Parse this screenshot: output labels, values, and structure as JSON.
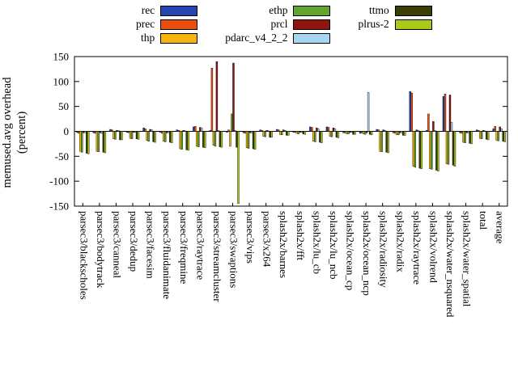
{
  "figure": {
    "ylabel_line1": "memused.avg overhead",
    "ylabel_line2": "(percent)"
  },
  "chart_data": {
    "type": "bar",
    "title": "",
    "xlabel": "",
    "ylabel": "memused.avg overhead (percent)",
    "ylim": [
      -150,
      150
    ],
    "yticks": [
      -150,
      -100,
      -50,
      0,
      50,
      100,
      150
    ],
    "legend_position": "top, 3 columns, column-major",
    "grid": false,
    "categories": [
      "parsec3/blackscholes",
      "parsec3/bodytrack",
      "parsec3/canneal",
      "parsec3/dedup",
      "parsec3/facesim",
      "parsec3/fluidanimate",
      "parsec3/freqmine",
      "parsec3/raytrace",
      "parsec3/streamcluster",
      "parsec3/swaptions",
      "parsec3/vips",
      "parsec3/x264",
      "splash2x/barnes",
      "splash2x/fft",
      "splash2x/lu_cb",
      "splash2x/lu_ncb",
      "splash2x/ocean_cp",
      "splash2x/ocean_ncp",
      "splash2x/radiosity",
      "splash2x/radix",
      "splash2x/raytrace",
      "splash2x/volrend",
      "splash2x/water_nsquared",
      "splash2x/water_spatial",
      "total",
      "average"
    ],
    "series": [
      {
        "name": "rec",
        "color": "#2545b0",
        "values": [
          -2,
          -3,
          4,
          -2,
          7,
          -2,
          3,
          9,
          2,
          -2,
          -3,
          3,
          4,
          -2,
          9,
          9,
          -3,
          -4,
          4,
          -3,
          80,
          2,
          70,
          -3,
          3,
          5
        ]
      },
      {
        "name": "prec",
        "color": "#e84e0f",
        "values": [
          -4,
          -4,
          3,
          -3,
          5,
          -4,
          2,
          10,
          127,
          3,
          -4,
          2,
          3,
          -2,
          8,
          8,
          -3,
          -3,
          3,
          -4,
          77,
          35,
          75,
          -4,
          2,
          10
        ]
      },
      {
        "name": "thp",
        "color": "#f6b40e",
        "values": [
          -40,
          -40,
          -15,
          -14,
          -18,
          -20,
          -35,
          -30,
          -28,
          -30,
          -33,
          -10,
          -6,
          -4,
          -20,
          -10,
          -5,
          -5,
          -40,
          -7,
          -70,
          -75,
          -65,
          -22,
          -14,
          -18
        ]
      },
      {
        "name": "ethp",
        "color": "#61a52c",
        "values": [
          -42,
          -41,
          -16,
          -15,
          -20,
          -21,
          -36,
          -31,
          -30,
          35,
          -34,
          -11,
          -7,
          -5,
          -21,
          -11,
          -5,
          -6,
          -41,
          -7,
          -72,
          -76,
          -66,
          -23,
          -15,
          -19
        ]
      },
      {
        "name": "prcl",
        "color": "#8f1410",
        "values": [
          -3,
          -3,
          2,
          -2,
          4,
          -3,
          2,
          8,
          140,
          137,
          -3,
          2,
          3,
          -2,
          7,
          7,
          -2,
          -3,
          3,
          -3,
          3,
          20,
          73,
          -3,
          2,
          9
        ]
      },
      {
        "name": "pdarc_v4_2_2",
        "color": "#a6d6f2",
        "values": [
          -3,
          -4,
          2,
          -2,
          3,
          -3,
          1,
          6,
          2,
          2,
          -3,
          1,
          2,
          -2,
          5,
          5,
          -2,
          78,
          2,
          -3,
          2,
          2,
          18,
          -3,
          1,
          5
        ]
      },
      {
        "name": "ttmo",
        "color": "#3d3d08",
        "values": [
          -44,
          -42,
          -17,
          -15,
          -21,
          -22,
          -37,
          -32,
          -31,
          -32,
          -35,
          -12,
          -8,
          -5,
          -22,
          -12,
          -6,
          -6,
          -42,
          -8,
          -74,
          -78,
          -68,
          -24,
          -16,
          -20
        ]
      },
      {
        "name": "plrus-2",
        "color": "#a9c817",
        "values": [
          -45,
          -43,
          -17,
          -16,
          -22,
          -23,
          -38,
          -33,
          -32,
          -145,
          -36,
          -12,
          -8,
          -6,
          -23,
          -13,
          -6,
          -7,
          -43,
          -8,
          -75,
          -80,
          -70,
          -25,
          -17,
          -21
        ]
      }
    ]
  }
}
